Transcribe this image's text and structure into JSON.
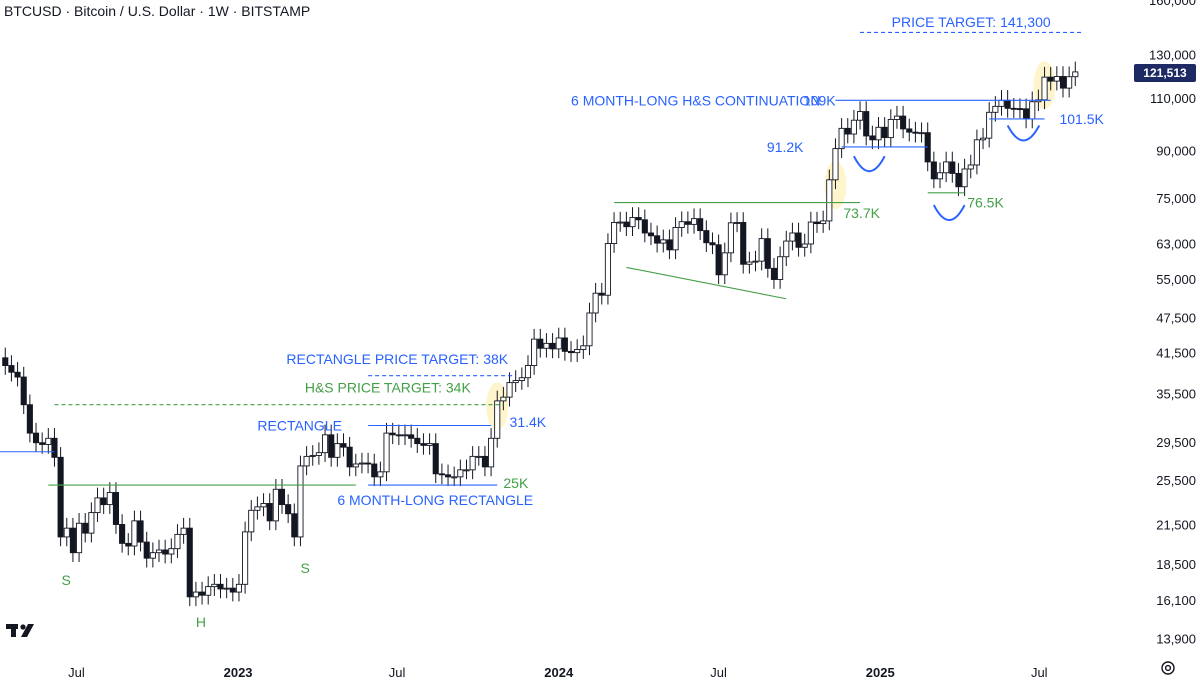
{
  "header": {
    "title": "BTCUSD · Bitcoin / U.S. Dollar · 1W · BITSTAMP"
  },
  "colors": {
    "up": "#ffffff",
    "down": "#131722",
    "blue": "#2962ff",
    "green": "#43a047",
    "grid": "#ffffff"
  },
  "icons": {
    "logo": "tradingview-logo-icon",
    "settings": "gear-icon"
  },
  "chart_data": {
    "type": "candlestick",
    "scale": "log",
    "ylim": [
      12800,
      160000
    ],
    "y_ticks": [
      "160,000",
      "130,000",
      "110,000",
      "90,000",
      "75,000",
      "63,000",
      "55,000",
      "47,500",
      "41,500",
      "35,500",
      "29,500",
      "25,500",
      "21,500",
      "18,500",
      "16,100",
      "13,900"
    ],
    "y_tick_values": [
      160000,
      130000,
      110000,
      90000,
      75000,
      63000,
      55000,
      47500,
      41500,
      35500,
      29500,
      25500,
      21500,
      18500,
      16100,
      13900
    ],
    "x_ticks": [
      "Jul",
      "2023",
      "Jul",
      "2024",
      "Jul",
      "2025",
      "Jul"
    ],
    "x_tick_dates": [
      "2022-07-01",
      "2023-01-01",
      "2023-07-01",
      "2024-01-01",
      "2024-07-01",
      "2025-01-01",
      "2025-07-01"
    ],
    "x_range": [
      "2022-04-05",
      "2025-10-10"
    ],
    "last_price": "121,513",
    "series_closes": [
      {
        "date": "2022-04-11",
        "close": 39500
      },
      {
        "date": "2022-04-18",
        "close": 38500
      },
      {
        "date": "2022-04-25",
        "close": 37800
      },
      {
        "date": "2022-05-02",
        "close": 34000
      },
      {
        "date": "2022-05-09",
        "close": 30500
      },
      {
        "date": "2022-05-16",
        "close": 29400
      },
      {
        "date": "2022-05-23",
        "close": 29200
      },
      {
        "date": "2022-05-30",
        "close": 29900
      },
      {
        "date": "2022-06-06",
        "close": 27800
      },
      {
        "date": "2022-06-13",
        "close": 20500
      },
      {
        "date": "2022-06-20",
        "close": 21200
      },
      {
        "date": "2022-06-27",
        "close": 19300
      },
      {
        "date": "2022-07-04",
        "close": 21600
      },
      {
        "date": "2022-07-11",
        "close": 20800
      },
      {
        "date": "2022-07-18",
        "close": 22500
      },
      {
        "date": "2022-07-25",
        "close": 23800
      },
      {
        "date": "2022-08-01",
        "close": 23200
      },
      {
        "date": "2022-08-08",
        "close": 24300
      },
      {
        "date": "2022-08-15",
        "close": 21500
      },
      {
        "date": "2022-08-22",
        "close": 20000
      },
      {
        "date": "2022-08-29",
        "close": 19800
      },
      {
        "date": "2022-09-05",
        "close": 21800
      },
      {
        "date": "2022-09-12",
        "close": 20100
      },
      {
        "date": "2022-09-19",
        "close": 18900
      },
      {
        "date": "2022-09-26",
        "close": 19300
      },
      {
        "date": "2022-10-03",
        "close": 19500
      },
      {
        "date": "2022-10-10",
        "close": 19200
      },
      {
        "date": "2022-10-17",
        "close": 19600
      },
      {
        "date": "2022-10-24",
        "close": 20700
      },
      {
        "date": "2022-10-31",
        "close": 21200
      },
      {
        "date": "2022-11-07",
        "close": 16300
      },
      {
        "date": "2022-11-14",
        "close": 16600
      },
      {
        "date": "2022-11-21",
        "close": 16400
      },
      {
        "date": "2022-11-28",
        "close": 16950
      },
      {
        "date": "2022-12-05",
        "close": 17100
      },
      {
        "date": "2022-12-12",
        "close": 16800
      },
      {
        "date": "2022-12-19",
        "close": 16850
      },
      {
        "date": "2022-12-26",
        "close": 16600
      },
      {
        "date": "2023-01-02",
        "close": 17100
      },
      {
        "date": "2023-01-09",
        "close": 20900
      },
      {
        "date": "2023-01-16",
        "close": 22700
      },
      {
        "date": "2023-01-23",
        "close": 23000
      },
      {
        "date": "2023-01-30",
        "close": 23300
      },
      {
        "date": "2023-02-06",
        "close": 21800
      },
      {
        "date": "2023-02-13",
        "close": 24600
      },
      {
        "date": "2023-02-20",
        "close": 23200
      },
      {
        "date": "2023-02-27",
        "close": 22400
      },
      {
        "date": "2023-03-06",
        "close": 20500
      },
      {
        "date": "2023-03-13",
        "close": 26900
      },
      {
        "date": "2023-03-20",
        "close": 27900
      },
      {
        "date": "2023-03-27",
        "close": 28000
      },
      {
        "date": "2023-04-03",
        "close": 28300
      },
      {
        "date": "2023-04-10",
        "close": 30300
      },
      {
        "date": "2023-04-17",
        "close": 27800
      },
      {
        "date": "2023-04-24",
        "close": 29300
      },
      {
        "date": "2023-05-01",
        "close": 28900
      },
      {
        "date": "2023-05-08",
        "close": 26800
      },
      {
        "date": "2023-05-15",
        "close": 27100
      },
      {
        "date": "2023-05-22",
        "close": 27200
      },
      {
        "date": "2023-05-29",
        "close": 27100
      },
      {
        "date": "2023-06-05",
        "close": 25800
      },
      {
        "date": "2023-06-12",
        "close": 26300
      },
      {
        "date": "2023-06-19",
        "close": 30500
      },
      {
        "date": "2023-06-26",
        "close": 30300
      },
      {
        "date": "2023-07-03",
        "close": 30200
      },
      {
        "date": "2023-07-10",
        "close": 30300
      },
      {
        "date": "2023-07-17",
        "close": 29900
      },
      {
        "date": "2023-07-24",
        "close": 29300
      },
      {
        "date": "2023-07-31",
        "close": 29100
      },
      {
        "date": "2023-08-07",
        "close": 29300
      },
      {
        "date": "2023-08-14",
        "close": 26100
      },
      {
        "date": "2023-08-21",
        "close": 26000
      },
      {
        "date": "2023-08-28",
        "close": 25800
      },
      {
        "date": "2023-09-04",
        "close": 25800
      },
      {
        "date": "2023-09-11",
        "close": 26500
      },
      {
        "date": "2023-09-18",
        "close": 26500
      },
      {
        "date": "2023-09-25",
        "close": 27900
      },
      {
        "date": "2023-10-02",
        "close": 27900
      },
      {
        "date": "2023-10-09",
        "close": 26800
      },
      {
        "date": "2023-10-16",
        "close": 29900
      },
      {
        "date": "2023-10-23",
        "close": 34500
      },
      {
        "date": "2023-10-30",
        "close": 35000
      },
      {
        "date": "2023-11-06",
        "close": 37000
      },
      {
        "date": "2023-11-13",
        "close": 37300
      },
      {
        "date": "2023-11-20",
        "close": 37700
      },
      {
        "date": "2023-11-27",
        "close": 39500
      },
      {
        "date": "2023-12-04",
        "close": 43700
      },
      {
        "date": "2023-12-11",
        "close": 42200
      },
      {
        "date": "2023-12-18",
        "close": 43000
      },
      {
        "date": "2023-12-25",
        "close": 42100
      },
      {
        "date": "2024-01-01",
        "close": 43900
      },
      {
        "date": "2024-01-08",
        "close": 41700
      },
      {
        "date": "2024-01-15",
        "close": 41500
      },
      {
        "date": "2024-01-22",
        "close": 42000
      },
      {
        "date": "2024-01-29",
        "close": 42600
      },
      {
        "date": "2024-02-05",
        "close": 48300
      },
      {
        "date": "2024-02-12",
        "close": 52100
      },
      {
        "date": "2024-02-19",
        "close": 51700
      },
      {
        "date": "2024-02-26",
        "close": 63000
      },
      {
        "date": "2024-03-04",
        "close": 68300
      },
      {
        "date": "2024-03-11",
        "close": 68400
      },
      {
        "date": "2024-03-18",
        "close": 67200
      },
      {
        "date": "2024-03-25",
        "close": 69600
      },
      {
        "date": "2024-04-01",
        "close": 69000
      },
      {
        "date": "2024-04-08",
        "close": 65600
      },
      {
        "date": "2024-04-15",
        "close": 64900
      },
      {
        "date": "2024-04-22",
        "close": 63100
      },
      {
        "date": "2024-04-29",
        "close": 63900
      },
      {
        "date": "2024-05-06",
        "close": 61500
      },
      {
        "date": "2024-05-13",
        "close": 67000
      },
      {
        "date": "2024-05-20",
        "close": 68500
      },
      {
        "date": "2024-05-27",
        "close": 67800
      },
      {
        "date": "2024-06-03",
        "close": 69300
      },
      {
        "date": "2024-06-10",
        "close": 66200
      },
      {
        "date": "2024-06-17",
        "close": 63200
      },
      {
        "date": "2024-06-24",
        "close": 62700
      },
      {
        "date": "2024-07-01",
        "close": 55900
      },
      {
        "date": "2024-07-08",
        "close": 60800
      },
      {
        "date": "2024-07-15",
        "close": 68200
      },
      {
        "date": "2024-07-22",
        "close": 68300
      },
      {
        "date": "2024-07-29",
        "close": 58200
      },
      {
        "date": "2024-08-05",
        "close": 58700
      },
      {
        "date": "2024-08-12",
        "close": 58900
      },
      {
        "date": "2024-08-19",
        "close": 64200
      },
      {
        "date": "2024-08-26",
        "close": 57300
      },
      {
        "date": "2024-09-02",
        "close": 54900
      },
      {
        "date": "2024-09-09",
        "close": 59900
      },
      {
        "date": "2024-09-16",
        "close": 63600
      },
      {
        "date": "2024-09-23",
        "close": 65600
      },
      {
        "date": "2024-09-30",
        "close": 62100
      },
      {
        "date": "2024-10-07",
        "close": 62900
      },
      {
        "date": "2024-10-14",
        "close": 68400
      },
      {
        "date": "2024-10-21",
        "close": 68000
      },
      {
        "date": "2024-10-28",
        "close": 68700
      },
      {
        "date": "2024-11-04",
        "close": 80400
      },
      {
        "date": "2024-11-11",
        "close": 90600
      },
      {
        "date": "2024-11-18",
        "close": 97900
      },
      {
        "date": "2024-11-25",
        "close": 95800
      },
      {
        "date": "2024-12-02",
        "close": 101000
      },
      {
        "date": "2024-12-09",
        "close": 104400
      },
      {
        "date": "2024-12-16",
        "close": 95100
      },
      {
        "date": "2024-12-23",
        "close": 93700
      },
      {
        "date": "2024-12-30",
        "close": 98300
      },
      {
        "date": "2025-01-06",
        "close": 94500
      },
      {
        "date": "2025-01-13",
        "close": 101300
      },
      {
        "date": "2025-01-20",
        "close": 102600
      },
      {
        "date": "2025-01-27",
        "close": 97700
      },
      {
        "date": "2025-02-03",
        "close": 96500
      },
      {
        "date": "2025-02-10",
        "close": 96100
      },
      {
        "date": "2025-02-17",
        "close": 96300
      },
      {
        "date": "2025-02-24",
        "close": 86100
      },
      {
        "date": "2025-03-03",
        "close": 80700
      },
      {
        "date": "2025-03-10",
        "close": 82600
      },
      {
        "date": "2025-03-17",
        "close": 86100
      },
      {
        "date": "2025-03-24",
        "close": 82400
      },
      {
        "date": "2025-03-31",
        "close": 78300
      },
      {
        "date": "2025-04-07",
        "close": 83800
      },
      {
        "date": "2025-04-14",
        "close": 85100
      },
      {
        "date": "2025-04-21",
        "close": 93700
      },
      {
        "date": "2025-04-28",
        "close": 94300
      },
      {
        "date": "2025-05-05",
        "close": 104100
      },
      {
        "date": "2025-05-12",
        "close": 106500
      },
      {
        "date": "2025-05-19",
        "close": 109000
      },
      {
        "date": "2025-05-26",
        "close": 105700
      },
      {
        "date": "2025-06-02",
        "close": 105600
      },
      {
        "date": "2025-06-09",
        "close": 105500
      },
      {
        "date": "2025-06-16",
        "close": 101500
      },
      {
        "date": "2025-06-23",
        "close": 108400
      },
      {
        "date": "2025-06-30",
        "close": 109200
      },
      {
        "date": "2025-07-07",
        "close": 119100
      },
      {
        "date": "2025-07-14",
        "close": 117300
      },
      {
        "date": "2025-07-21",
        "close": 119400
      },
      {
        "date": "2025-07-28",
        "close": 114200
      },
      {
        "date": "2025-08-04",
        "close": 119300
      },
      {
        "date": "2025-08-11",
        "close": 121513
      }
    ],
    "lines": [
      {
        "kind": "dashed",
        "color": "blue",
        "y": 141300,
        "from": "2024-12-09",
        "to": "2025-08-18"
      },
      {
        "kind": "solid",
        "color": "blue",
        "y": 109000,
        "from": "2024-11-11",
        "to": "2025-07-14"
      },
      {
        "kind": "solid",
        "color": "blue",
        "y": 91200,
        "from": "2024-11-18",
        "to": "2025-02-24"
      },
      {
        "kind": "solid",
        "color": "blue",
        "y": 101500,
        "from": "2025-05-05",
        "to": "2025-07-07"
      },
      {
        "kind": "solid",
        "color": "green",
        "y": 73700,
        "from": "2024-03-04",
        "to": "2024-12-09"
      },
      {
        "kind": "solid",
        "color": "green",
        "y": 76500,
        "from": "2025-02-24",
        "to": "2025-04-07"
      },
      {
        "kind": "solid",
        "color": "green",
        "y": 25000,
        "from": "2022-05-30",
        "to": "2023-05-15"
      },
      {
        "kind": "solid",
        "color": "blue",
        "y": 31400,
        "from": "2023-05-29",
        "to": "2023-10-16"
      },
      {
        "kind": "solid",
        "color": "blue",
        "y": 25000,
        "from": "2023-05-29",
        "to": "2023-10-23"
      },
      {
        "kind": "dashed",
        "color": "blue",
        "y": 38000,
        "from": "2023-05-29",
        "to": "2023-11-13"
      },
      {
        "kind": "dashed",
        "color": "green",
        "y": 34000,
        "from": "2022-06-06",
        "to": "2023-10-30"
      },
      {
        "kind": "solid",
        "color": "blue",
        "y": 28400,
        "from": "2022-04-05",
        "to": "2022-06-06"
      }
    ],
    "annotations": [
      {
        "text": "PRICE TARGET: 141,300",
        "color": "blue",
        "date": "2025-01-14",
        "y": 147000
      },
      {
        "text": "6 MONTH-LONG H&S CONTINUATION",
        "color": "blue",
        "date": "2024-01-15",
        "y": 109000
      },
      {
        "text": "109K",
        "color": "blue",
        "date": "2024-10-05",
        "y": 109000
      },
      {
        "text": "91.2K",
        "color": "blue",
        "date": "2024-08-25",
        "y": 91200
      },
      {
        "text": "101.5K",
        "color": "blue",
        "date": "2025-07-24",
        "y": 101500
      },
      {
        "text": "73.7K",
        "color": "green",
        "date": "2024-11-20",
        "y": 70800
      },
      {
        "text": "76.5K",
        "color": "green",
        "date": "2025-04-10",
        "y": 73700
      },
      {
        "text": "RECTANGLE PRICE TARGET: 38K",
        "color": "blue",
        "date": "2023-02-25",
        "y": 40500
      },
      {
        "text": "H&S PRICE TARGET: 34K",
        "color": "green",
        "date": "2023-03-18",
        "y": 36300
      },
      {
        "text": "RECTANGLE",
        "color": "blue",
        "date": "2023-01-23",
        "y": 31400
      },
      {
        "text": "31.4K",
        "color": "blue",
        "date": "2023-11-06",
        "y": 31800
      },
      {
        "text": "25K",
        "color": "green",
        "date": "2023-10-30",
        "y": 25200
      },
      {
        "text": "6 MONTH-LONG RECTANGLE",
        "color": "blue",
        "date": "2023-04-24",
        "y": 23600
      },
      {
        "text": "S",
        "color": "green",
        "date": "2022-06-14",
        "y": 17400
      },
      {
        "text": "H",
        "color": "green",
        "date": "2022-11-14",
        "y": 14800
      },
      {
        "text": "S",
        "color": "green",
        "date": "2023-03-13",
        "y": 18200
      }
    ],
    "highlights": [
      {
        "date": "2023-10-23",
        "y": 33800
      },
      {
        "date": "2024-11-11",
        "y": 78800
      },
      {
        "date": "2025-07-07",
        "y": 115500
      }
    ],
    "arcs": [
      {
        "from": "2024-12-02",
        "to": "2025-01-06",
        "y": 88000
      },
      {
        "from": "2025-03-03",
        "to": "2025-04-07",
        "y": 73000
      },
      {
        "from": "2025-05-26",
        "to": "2025-07-01",
        "y": 99000
      }
    ],
    "trendlines": [
      {
        "color": "green",
        "from_date": "2024-03-18",
        "from_y": 57500,
        "to_date": "2024-09-16",
        "to_y": 51000
      }
    ]
  }
}
